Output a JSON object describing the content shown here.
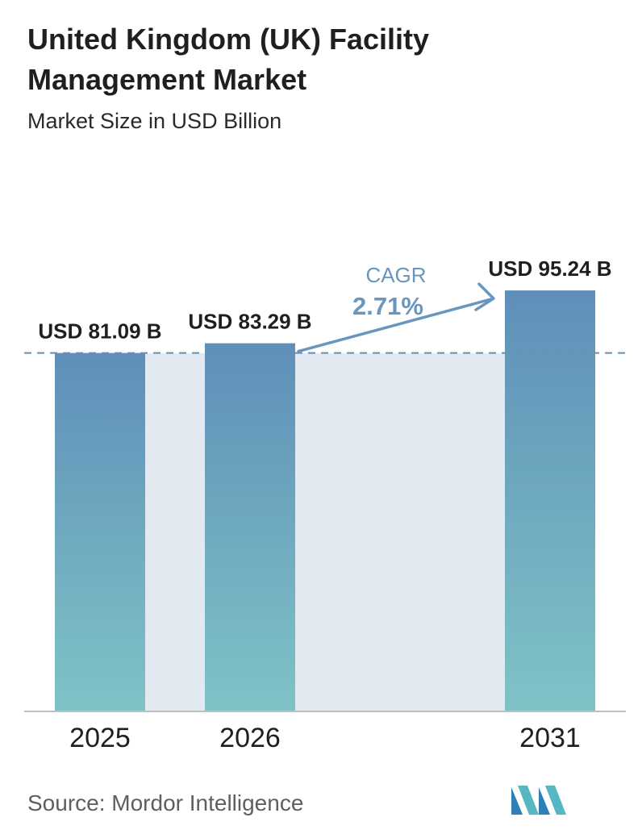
{
  "header": {
    "title": "United Kingdom (UK) Facility Management Market",
    "subtitle": "Market Size in USD Billion"
  },
  "chart_data": {
    "type": "bar",
    "title": "United Kingdom (UK) Facility Management Market",
    "subtitle": "Market Size in USD Billion",
    "categories": [
      "2025",
      "2026",
      "2031"
    ],
    "values": [
      81.09,
      83.29,
      95.24
    ],
    "value_labels": [
      "USD 81.09 B",
      "USD 83.29 B",
      "USD 95.24 B"
    ],
    "unit": "USD Billion",
    "annotation": {
      "label": "CAGR",
      "value": "2.71%",
      "from": "2026",
      "to": "2031"
    },
    "reference_line_value": 81.09,
    "ylim": [
      0,
      98
    ],
    "grid": false,
    "legend": "none",
    "colors": {
      "bar_top": "#5f8fb9",
      "bar_bottom": "#7fc3c6",
      "band": "#e2e9f1",
      "dashed_line": "#6b8fae",
      "arrow": "#6a96bd",
      "axis": "#bfbfbf"
    }
  },
  "footer": {
    "source": "Source:  Mordor Intelligence",
    "logo_icon": "mordor-intelligence-logo-icon"
  }
}
